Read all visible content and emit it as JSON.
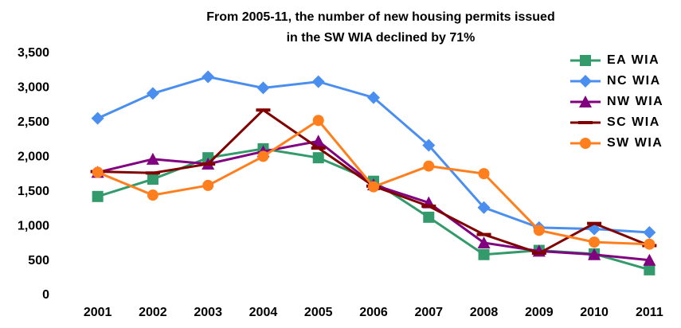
{
  "chart_data": {
    "type": "line",
    "title": [
      "From 2005-11, the number of new housing permits issued",
      "in the SW WIA declined by 71%"
    ],
    "categories": [
      "2001",
      "2002",
      "2003",
      "2004",
      "2005",
      "2006",
      "2007",
      "2008",
      "2009",
      "2010",
      "2011"
    ],
    "series": [
      {
        "name": "EA WIA",
        "color": "#339a6b",
        "marker": "square",
        "values": [
          1430,
          1680,
          1990,
          2120,
          1990,
          1650,
          1130,
          590,
          650,
          600,
          370
        ]
      },
      {
        "name": "NC WIA",
        "color": "#4a8ef0",
        "marker": "diamond",
        "values": [
          2560,
          2920,
          3160,
          3000,
          3090,
          2860,
          2170,
          1270,
          980,
          960,
          910
        ]
      },
      {
        "name": "NW WIA",
        "color": "#800080",
        "marker": "triangle",
        "values": [
          1780,
          1970,
          1900,
          2080,
          2230,
          1600,
          1340,
          760,
          640,
          590,
          510
        ]
      },
      {
        "name": "SC WIA",
        "color": "#800000",
        "marker": "dash",
        "values": [
          1790,
          1770,
          1900,
          2680,
          2130,
          1580,
          1290,
          880,
          610,
          1040,
          720
        ]
      },
      {
        "name": "SW WIA",
        "color": "#ff7f1e",
        "marker": "circle",
        "values": [
          1780,
          1450,
          1590,
          2010,
          2530,
          1570,
          1870,
          1760,
          940,
          770,
          740
        ]
      }
    ],
    "ylim": [
      0,
      3500
    ],
    "yticks": [
      0,
      500,
      {
        "value": 1000,
        "label": "1,000"
      },
      {
        "value": 1500,
        "label": "1,500"
      },
      {
        "value": 2000,
        "label": "2,000"
      },
      {
        "value": 2500,
        "label": "2,500"
      },
      {
        "value": 3000,
        "label": "3,000"
      },
      {
        "value": 3500,
        "label": "3,500"
      }
    ],
    "legend": "upper right"
  }
}
